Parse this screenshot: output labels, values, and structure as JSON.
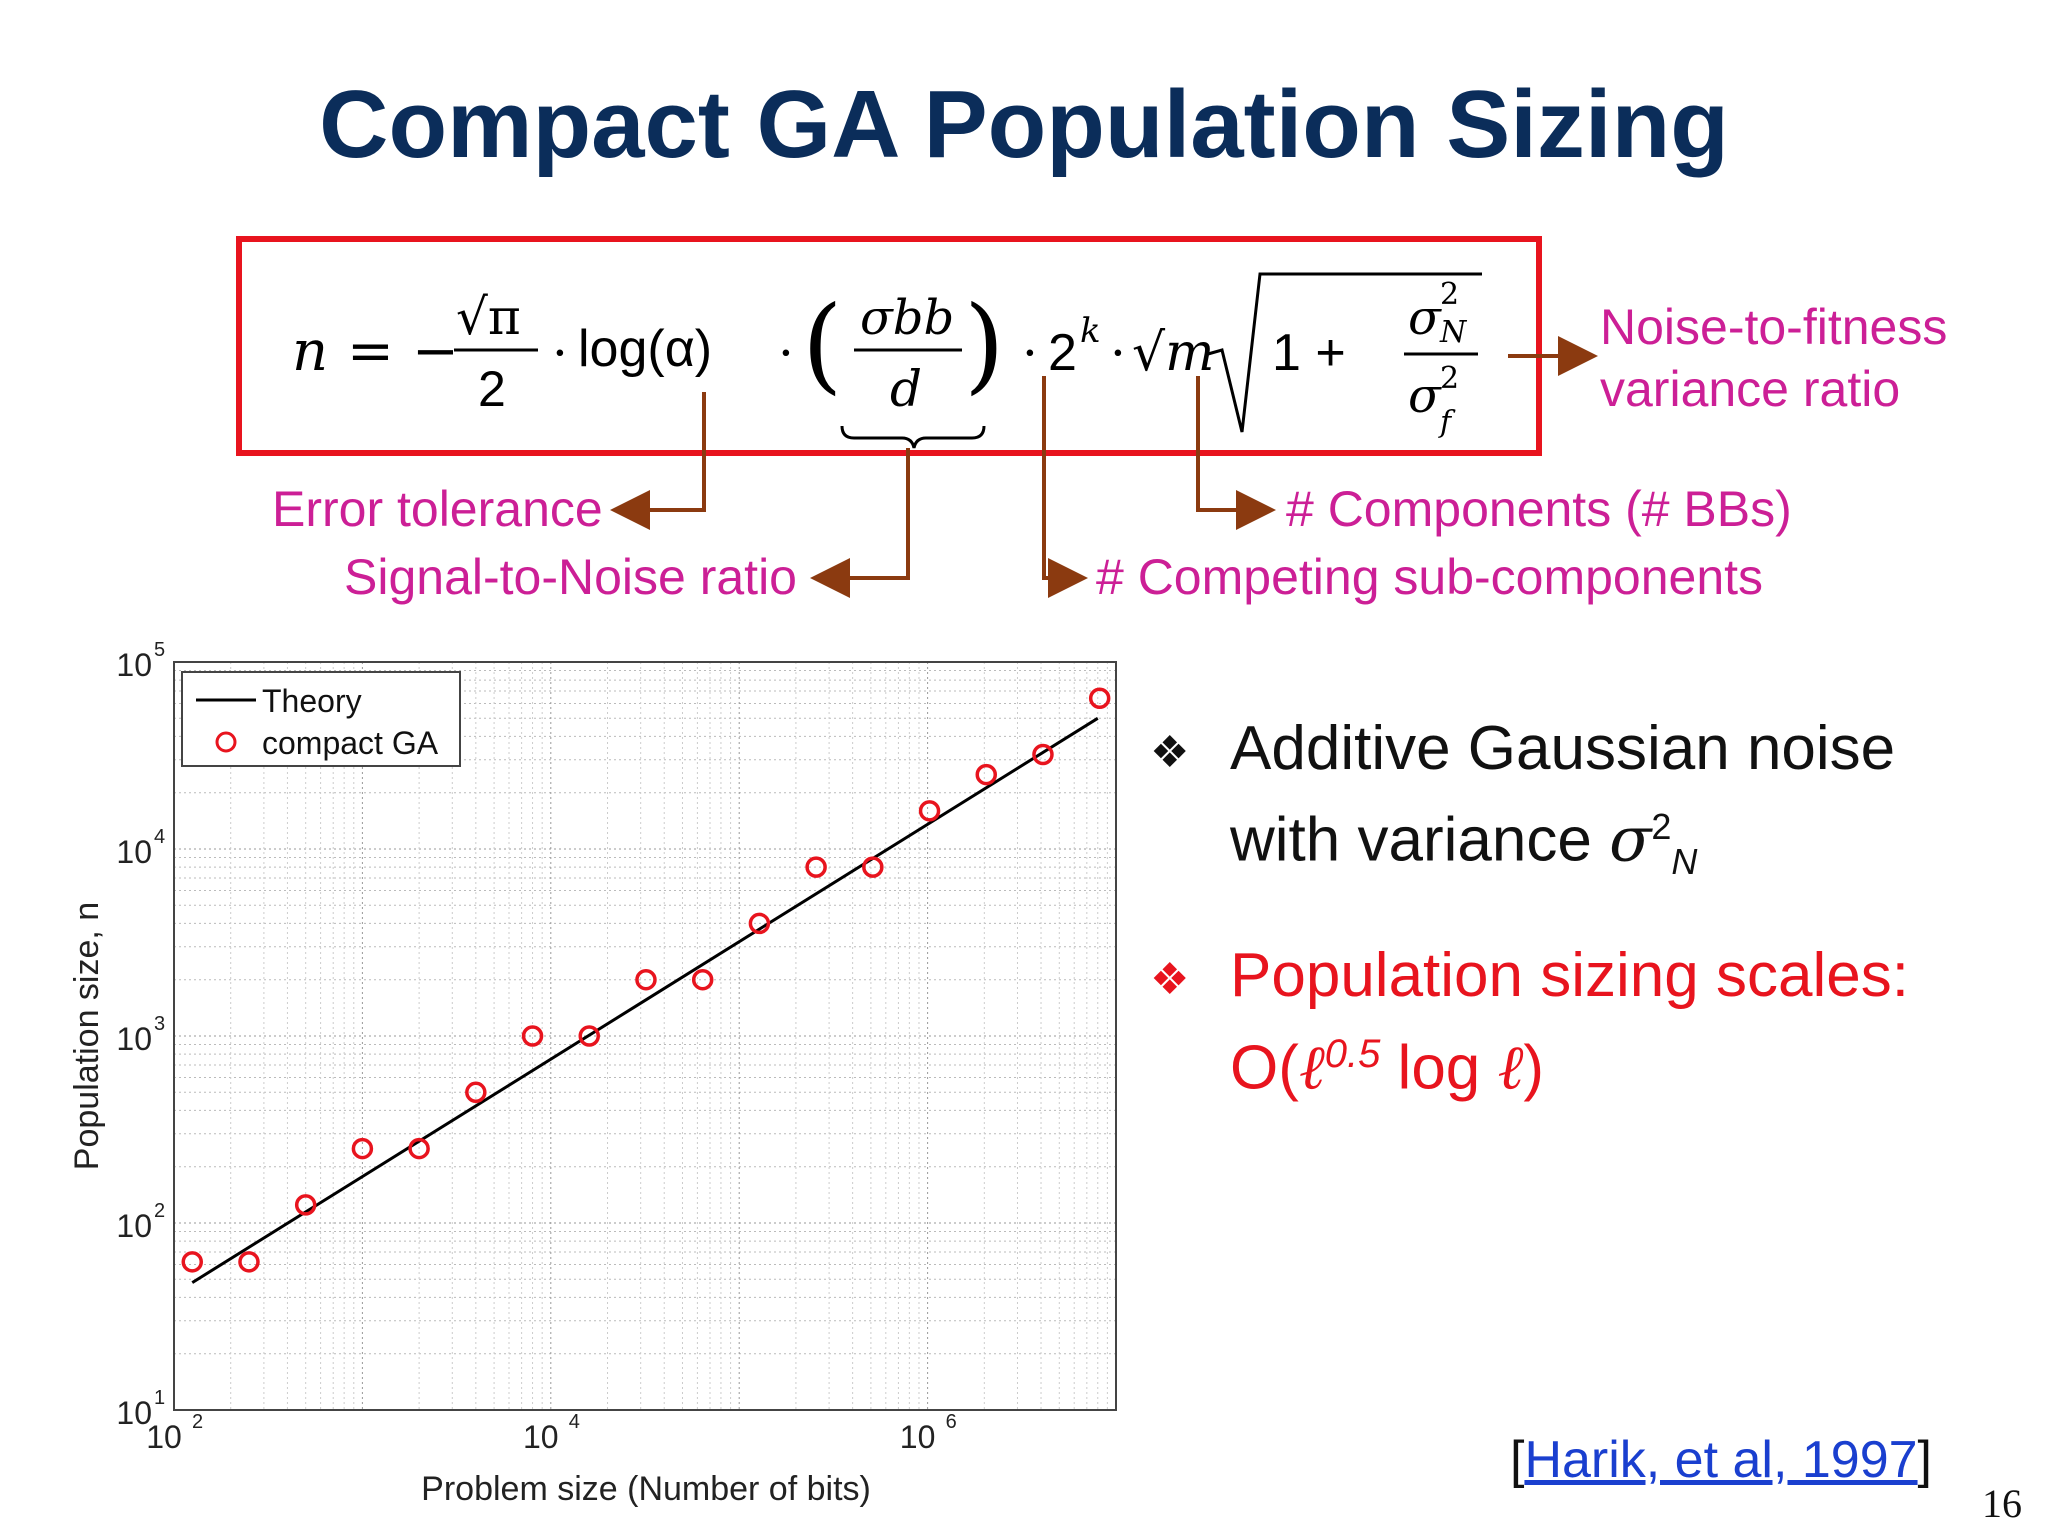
{
  "slide": {
    "title": "Compact GA Population Sizing",
    "page_number": "16"
  },
  "formula": {
    "lhs": "n",
    "sqrt_pi": "√π",
    "denominator_2": "2",
    "log_alpha": "log(α)",
    "sigma_bb": "σbb",
    "d": "d",
    "two_k": "2",
    "k": "k",
    "sqrt_m": "√m",
    "one_plus": "1 +",
    "sigma_n": "σ",
    "sigma_f": "σ"
  },
  "callouts": {
    "noise_to_fitness": "Noise-to-fitness variance ratio",
    "noise_line1": "Noise-to-fitness",
    "noise_line2": "variance ratio",
    "error_tolerance": "Error tolerance",
    "signal_to_noise": "Signal-to-Noise ratio",
    "components": "# Components (# BBs)",
    "competing": "# Competing sub-components"
  },
  "bullets": {
    "b1_line1": "Additive Gaussian noise",
    "b1_line2": "with variance",
    "b2_line1": "Population sizing scales:",
    "b2_prefix": "O(",
    "b2_sup": "0.5",
    "b2_log": "log",
    "b2_suffix": ")"
  },
  "citation": {
    "open": "[",
    "text": "Harik, et al, 1997",
    "close": "]"
  },
  "colors": {
    "title": "#0b2d5a",
    "callout": "#cc1f96",
    "arrow": "#8b3a10",
    "box": "#e8141e",
    "marker": "#e8141e",
    "theory": "#000000"
  },
  "chart_data": {
    "type": "scatter",
    "xscale": "log",
    "yscale": "log",
    "xlim": [
      100,
      10000000
    ],
    "ylim": [
      10,
      100000
    ],
    "xlabel": "Problem size (Number of bits)",
    "ylabel": "Population size, n",
    "grid": true,
    "legend_position": "top-left",
    "xtick_labels": [
      {
        "base": "10",
        "exp": "2",
        "value": 100
      },
      {
        "base": "10",
        "exp": "4",
        "value": 10000
      },
      {
        "base": "10",
        "exp": "6",
        "value": 1000000
      }
    ],
    "ytick_labels": [
      {
        "base": "10",
        "exp": "1",
        "value": 10
      },
      {
        "base": "10",
        "exp": "2",
        "value": 100
      },
      {
        "base": "10",
        "exp": "3",
        "value": 1000
      },
      {
        "base": "10",
        "exp": "4",
        "value": 10000
      },
      {
        "base": "10",
        "exp": "5",
        "value": 100000
      }
    ],
    "series": [
      {
        "name": "Theory",
        "style": "line",
        "x": [
          125,
          8000000
        ],
        "y": [
          48,
          50000
        ]
      },
      {
        "name": "compact GA",
        "style": "marker-circle",
        "x": [
          125,
          250,
          500,
          1000,
          2000,
          4000,
          8000,
          16000,
          32000,
          64000,
          128000,
          256000,
          512000,
          1024000,
          2048000,
          4096000,
          8192000
        ],
        "y": [
          62,
          62,
          125,
          250,
          250,
          500,
          1000,
          1000,
          2000,
          2000,
          4000,
          8000,
          8000,
          16000,
          25000,
          32000,
          64000
        ]
      }
    ]
  }
}
